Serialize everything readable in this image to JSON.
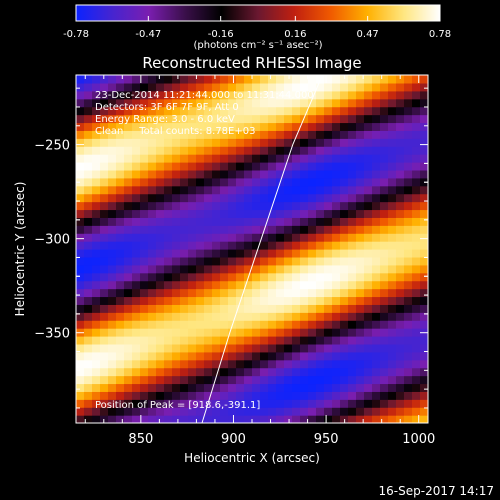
{
  "colorbar": {
    "tick_labels": [
      "-0.78",
      "-0.47",
      "-0.16",
      "0.16",
      "0.47",
      "0.78"
    ],
    "tick_values": [
      -0.78,
      -0.47,
      -0.16,
      0.16,
      0.47,
      0.78
    ],
    "range": [
      -0.78,
      0.78
    ],
    "units_label": "(photons cm⁻² s⁻¹ asec⁻²)",
    "colormap_stops": [
      "#0b23ff",
      "#4624d0",
      "#7a1eb0",
      "#3a0f4a",
      "#000000",
      "#6a1830",
      "#c02010",
      "#f05a00",
      "#ffb000",
      "#ffe680",
      "#ffffff"
    ]
  },
  "title": "Reconstructed RHESSI Image",
  "info_lines": [
    "23-Dec-2014 11:21:44.000 to 11:31:44.000",
    "Detectors: 3F 6F 7F 9F, Att 0",
    "Energy Range: 3.0 - 6.0 keV",
    "Clean     Total counts: 8.78E+03"
  ],
  "peak_text": "Position of Peak = [918.6,-391.1]",
  "footer_timestamp": "16-Sep-2017 14:17",
  "chart_data": {
    "type": "heatmap",
    "title": "Reconstructed RHESSI Image",
    "xlabel": "Heliocentric X (arcsec)",
    "ylabel": "Heliocentric Y (arcsec)",
    "xlim": [
      815,
      1005
    ],
    "ylim": [
      -398,
      -213
    ],
    "x_ticks": [
      850,
      900,
      950,
      1000
    ],
    "x_tick_labels": [
      "850",
      "900",
      "950",
      "1000"
    ],
    "y_ticks": [
      -250,
      -300,
      -350
    ],
    "y_tick_labels": [
      "−250",
      "−300",
      "−350"
    ],
    "value_range": [
      -0.78,
      0.78
    ],
    "stripe_slope": 0.36,
    "stripe_period_arcsec": 106,
    "bright_band_centers_at_x_815": [
      -263,
      -369
    ],
    "solar_limb": [
      [
        883,
        -398
      ],
      [
        898,
        -350
      ],
      [
        915,
        -300
      ],
      [
        932,
        -250
      ],
      [
        948,
        -213
      ]
    ]
  }
}
